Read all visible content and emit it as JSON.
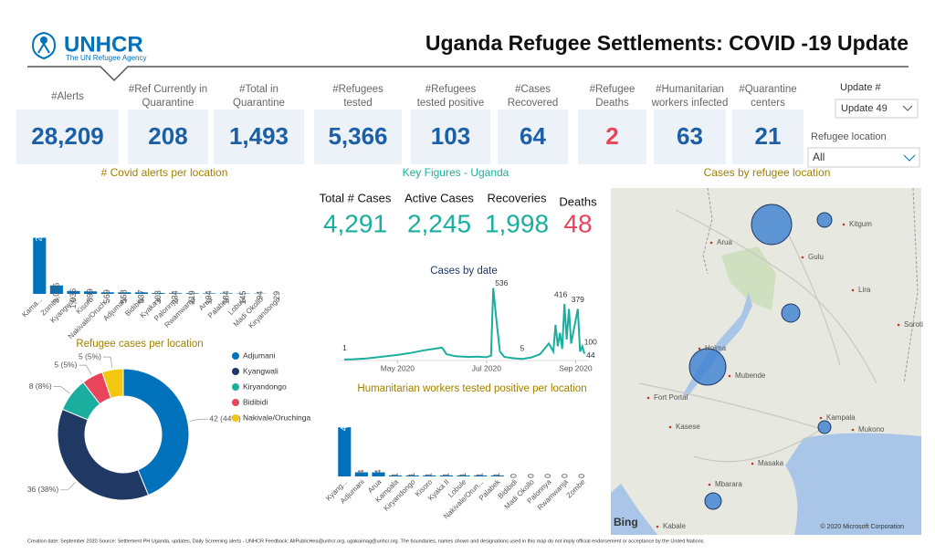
{
  "header": {
    "logo": "UNHCR",
    "logo_sub": "The UN Refugee Agency",
    "title": "Uganda Refugee Settlements: COVID -19 Update"
  },
  "kpis": [
    {
      "label": [
        "#Alerts"
      ],
      "value": "28,209",
      "color": "#1b5fa6"
    },
    {
      "label": [
        "#Ref Currently in",
        "Quarantine"
      ],
      "value": "208",
      "color": "#1b5fa6"
    },
    {
      "label": [
        "#Total in",
        "Quarantine"
      ],
      "value": "1,493",
      "color": "#1b5fa6"
    },
    {
      "label": [
        "#Refugees",
        "tested"
      ],
      "value": "5,366",
      "color": "#1b5fa6"
    },
    {
      "label": [
        "#Refugees",
        "tested positive"
      ],
      "value": "103",
      "color": "#1b5fa6"
    },
    {
      "label": [
        "#Cases",
        "Recovered"
      ],
      "value": "64",
      "color": "#1b5fa6"
    },
    {
      "label": [
        "#Refugee",
        "Deaths"
      ],
      "value": "2",
      "color": "#e8445a"
    },
    {
      "label": [
        "#Humanitarian",
        "workers infected"
      ],
      "value": "63",
      "color": "#1b5fa6"
    },
    {
      "label": [
        "#Quarantine",
        "centers"
      ],
      "value": "21",
      "color": "#1b5fa6"
    }
  ],
  "filters": {
    "update_label": "Update #",
    "update_value": "Update 49",
    "location_label": "Refugee location",
    "location_value": "All"
  },
  "sections": [
    "# Covid alerts per location",
    "Key Figures - Uganda",
    "Cases by refugee location"
  ],
  "key_figures": [
    {
      "label": "Total # Cases",
      "value": "4,291",
      "color": "#1aae9f"
    },
    {
      "label": "Active Cases",
      "value": "2,245",
      "color": "#1aae9f"
    },
    {
      "label": "Recoveries",
      "value": "1,998",
      "color": "#1aae9f"
    },
    {
      "label": "Deaths",
      "value": "48",
      "color": "#e8445a"
    }
  ],
  "map": {
    "places": [
      "Kitgum",
      "Arua",
      "Gulu",
      "Lira",
      "Soroti",
      "Hoima",
      "Fort Portal",
      "Mubende",
      "Kasese",
      "Kampala",
      "Mukono",
      "Masaka",
      "Mbarara",
      "Kabale"
    ],
    "provider": "Bing",
    "attribution": "© 2020 Microsoft Corporation"
  },
  "footer": "Creation date: September 2020     Source: Settlement PH Uganda, updates, Daily Screening alerts - UNHCR    Feedback: AllPublicHea@unhcr.org, ugakaimag@unhcr.org.   The boundaries, names shown and designations used in this map do not imply official endorsement or acceptance by the United Nations.",
  "chart_data": [
    {
      "type": "bar",
      "title": "# Covid alerts per location",
      "categories": [
        "Kama...",
        "Zombe",
        "Kyangwali",
        "Kisoro",
        "Nakivale/Oruch...",
        "Adjumani",
        "Bidibidi",
        "Kyaka II",
        "Palorinya",
        "Rwamwanja",
        "Arua",
        "Palabek",
        "Lobule",
        "Madi Okollo",
        "Kiryandongo"
      ],
      "values": [
        20173,
        3036,
        1036,
        899,
        569,
        558,
        537,
        303,
        234,
        219,
        194,
        184,
        145,
        94,
        29
      ],
      "value_labels": [
        "20,173",
        "3,036",
        "1,036",
        "899",
        "569",
        "558",
        "537",
        "303",
        "234",
        "219",
        "194",
        "184",
        "145",
        "94",
        "29"
      ],
      "color": "#0072bc",
      "ylim": [
        0,
        21000
      ]
    },
    {
      "type": "line",
      "title": "Cases by date",
      "x": [
        3.8,
        4.0,
        4.3,
        4.6,
        5.0,
        5.3,
        5.6,
        5.9,
        6.0,
        6.1,
        6.3,
        6.6,
        6.8,
        7.0,
        7.1,
        7.15,
        7.22,
        7.3,
        7.4,
        7.6,
        7.8,
        8.0,
        8.2,
        8.4,
        8.5,
        8.55,
        8.6,
        8.65,
        8.7,
        8.75,
        8.8,
        8.85,
        8.9,
        9.05,
        9.1,
        9.15,
        9.2
      ],
      "values": [
        1,
        3,
        8,
        20,
        35,
        50,
        70,
        85,
        90,
        40,
        25,
        20,
        22,
        18,
        30,
        536,
        300,
        60,
        20,
        10,
        5,
        15,
        40,
        120,
        60,
        260,
        100,
        200,
        80,
        416,
        150,
        380,
        120,
        379,
        60,
        100,
        44
      ],
      "color": "#1aae9f",
      "xlim": [
        3.7,
        9.3
      ],
      "ylim": [
        0,
        560
      ],
      "xticks": [
        {
          "value": 5,
          "label": "May 2020"
        },
        {
          "value": 7,
          "label": "Jul 2020"
        },
        {
          "value": 9,
          "label": "Sep 2020"
        }
      ]
    },
    {
      "type": "pie",
      "donut": true,
      "title": "Refugee cases per location",
      "categories": [
        "Adjumani",
        "Kyangwali",
        "Kiryandongo",
        "Bidibidi",
        "Nakivale/Oruchinga"
      ],
      "values": [
        42,
        36,
        8,
        5,
        5
      ],
      "value_labels": [
        "42 (44%)",
        "36 (38%)",
        "8 (8%)",
        "5 (5%)",
        "5 (5%)"
      ],
      "colors": [
        "#0072bc",
        "#1f3864",
        "#1aae9f",
        "#e8445a",
        "#f2c811"
      ]
    },
    {
      "type": "bar",
      "title": "Humanitarian workers tested positive per location",
      "categories": [
        "Kyang...",
        "Adjumani",
        "Arua",
        "Kampala",
        "Kiryandongo",
        "Kisoro",
        "Kyaka II",
        "Lobule",
        "Nakivale/Orun...",
        "Palabek",
        "Bidibidi",
        "Madi Okollo",
        "Palorinya",
        "Rwamwanja",
        "Zombe"
      ],
      "values": [
        48,
        4,
        4,
        1,
        1,
        1,
        1,
        1,
        1,
        1,
        0,
        0,
        0,
        0,
        0
      ],
      "color": "#0072bc",
      "ylim": [
        0,
        50
      ]
    }
  ]
}
